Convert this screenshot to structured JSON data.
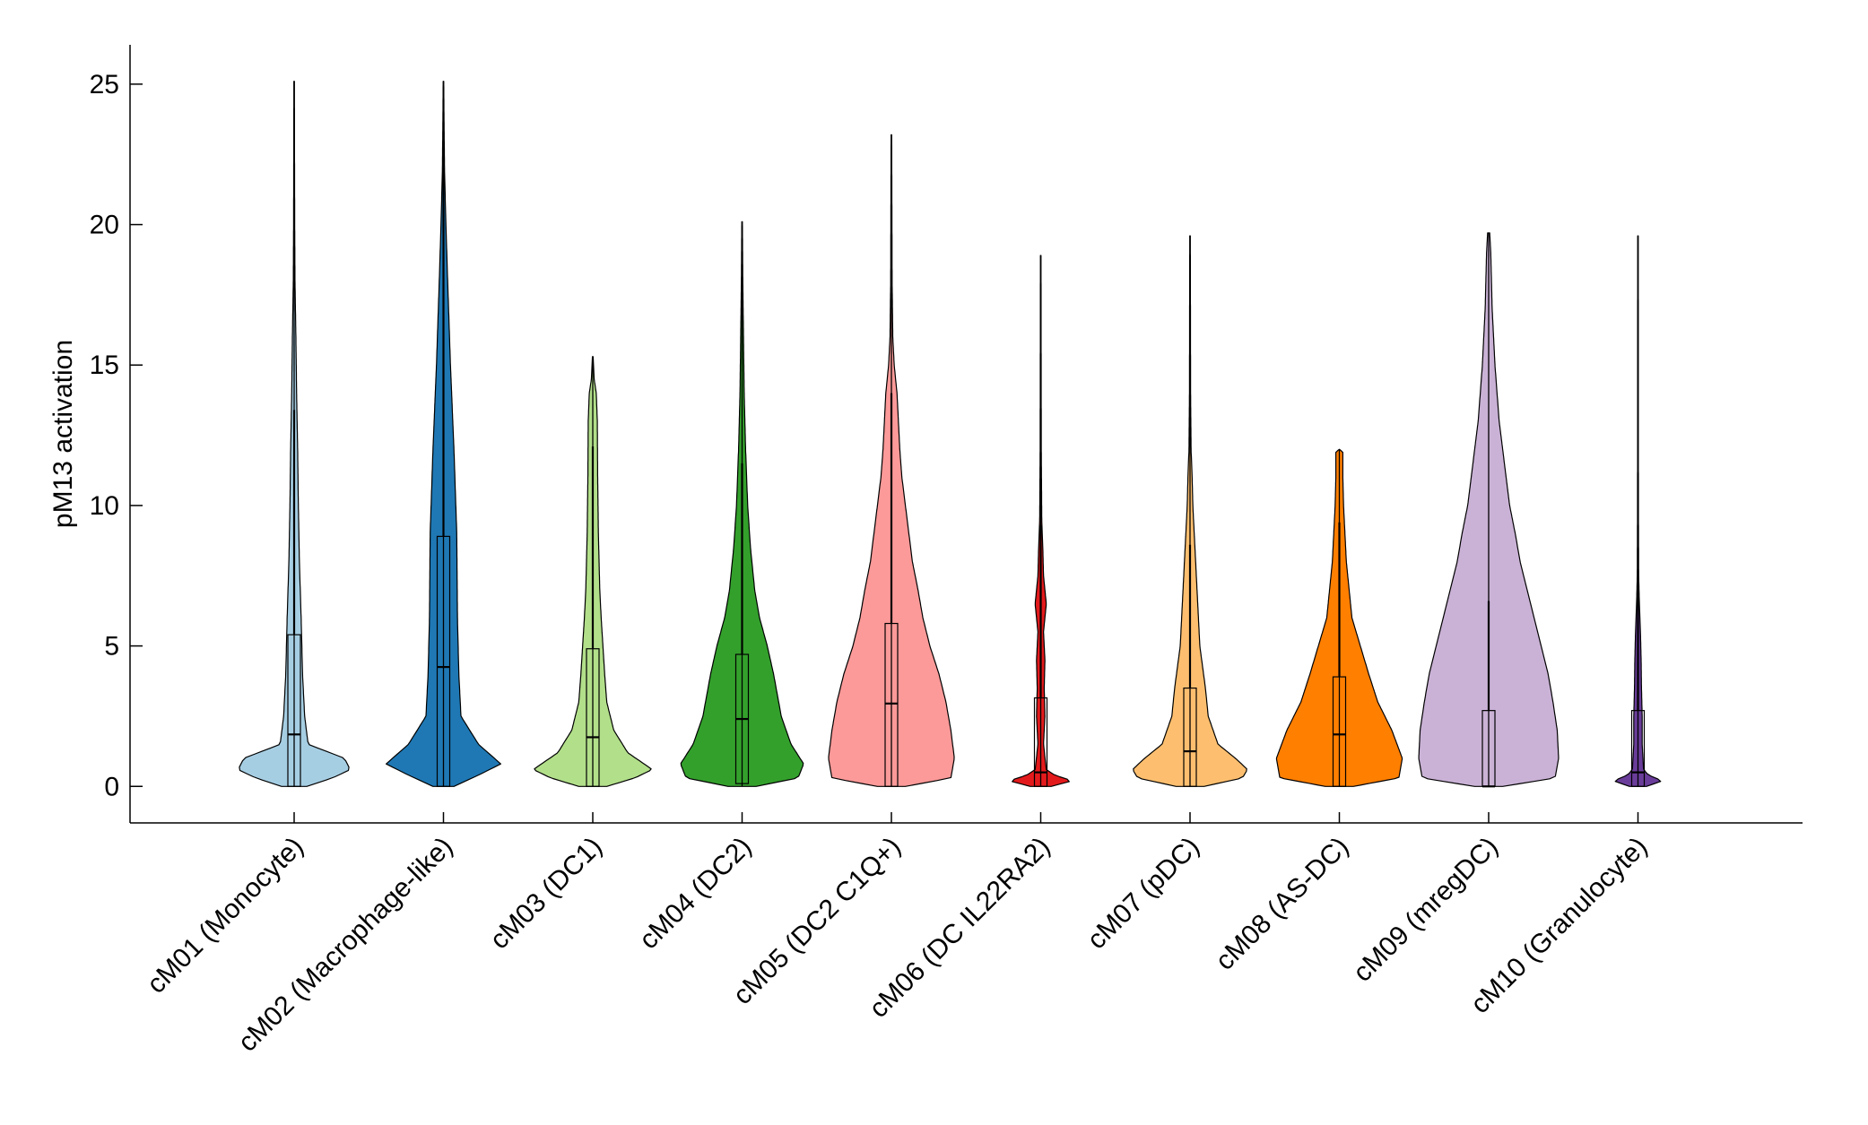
{
  "chart_data": {
    "type": "violin",
    "ylabel": "pM13 activation",
    "ylim": [
      -1.3,
      26.4
    ],
    "yticks": [
      0,
      5,
      10,
      15,
      20,
      25
    ],
    "grid": false,
    "legend": "none",
    "categories": [
      "cM01 (Monocyte)",
      "cM02 (Macrophage-like)",
      "cM03 (DC1)",
      "cM04 (DC2)",
      "cM05 (DC2 C1Q+)",
      "cM06 (DC IL22RA2)",
      "cM07 (pDC)",
      "cM08 (AS-DC)",
      "cM09 (mregDC)",
      "cM10 (Granulocyte)"
    ],
    "colors": [
      "#a6cee3",
      "#1f78b4",
      "#b2df8a",
      "#33a02c",
      "#fb9a99",
      "#e31a1c",
      "#fdbf6f",
      "#ff7f00",
      "#cab2d6",
      "#6a3d9a"
    ],
    "series": [
      {
        "max": 25.1,
        "q1": 0,
        "median": 1.85,
        "q3": 5.4,
        "whisker": 13.4,
        "profile": [
          [
            0,
            0.18
          ],
          [
            0.3,
            0.55
          ],
          [
            0.6,
            0.8
          ],
          [
            1,
            0.72
          ],
          [
            1.5,
            0.2
          ],
          [
            2.5,
            0.15
          ],
          [
            4,
            0.12
          ],
          [
            6,
            0.1
          ],
          [
            8,
            0.075
          ],
          [
            10,
            0.06
          ],
          [
            12,
            0.05
          ],
          [
            14,
            0.035
          ],
          [
            16,
            0.025
          ],
          [
            18,
            0.012
          ],
          [
            20,
            0.008
          ],
          [
            23,
            0.005
          ],
          [
            25.1,
            0.004
          ]
        ]
      },
      {
        "max": 25.1,
        "q1": 0,
        "median": 4.25,
        "q3": 8.9,
        "whisker": 22.0,
        "profile": [
          [
            0,
            0.15
          ],
          [
            0.4,
            0.5
          ],
          [
            0.8,
            0.82
          ],
          [
            1.5,
            0.5
          ],
          [
            2.5,
            0.25
          ],
          [
            4,
            0.22
          ],
          [
            6,
            0.2
          ],
          [
            9,
            0.19
          ],
          [
            12,
            0.15
          ],
          [
            15,
            0.1
          ],
          [
            18,
            0.06
          ],
          [
            20,
            0.035
          ],
          [
            22,
            0.015
          ],
          [
            24,
            0.007
          ],
          [
            25.1,
            0.004
          ]
        ]
      },
      {
        "max": 15.3,
        "q1": 0,
        "median": 1.75,
        "q3": 4.9,
        "whisker": 12.1,
        "profile": [
          [
            0,
            0.2
          ],
          [
            0.3,
            0.6
          ],
          [
            0.6,
            0.85
          ],
          [
            1.2,
            0.5
          ],
          [
            2,
            0.3
          ],
          [
            3,
            0.2
          ],
          [
            4,
            0.17
          ],
          [
            6,
            0.12
          ],
          [
            7,
            0.1
          ],
          [
            9,
            0.08
          ],
          [
            11,
            0.07
          ],
          [
            13,
            0.065
          ],
          [
            14,
            0.05
          ],
          [
            14.5,
            0.02
          ],
          [
            15.3,
            0.005
          ]
        ]
      },
      {
        "max": 20.1,
        "q1": 0.1,
        "median": 2.4,
        "q3": 4.7,
        "whisker": 11.5,
        "profile": [
          [
            0,
            0.2
          ],
          [
            0.3,
            0.8
          ],
          [
            0.8,
            0.88
          ],
          [
            1.5,
            0.7
          ],
          [
            2.5,
            0.56
          ],
          [
            4,
            0.45
          ],
          [
            5,
            0.36
          ],
          [
            6,
            0.25
          ],
          [
            7,
            0.18
          ],
          [
            8.5,
            0.12
          ],
          [
            10,
            0.08
          ],
          [
            12,
            0.05
          ],
          [
            14,
            0.03
          ],
          [
            16,
            0.02
          ],
          [
            18,
            0.01
          ],
          [
            20.1,
            0.004
          ]
        ]
      },
      {
        "max": 23.2,
        "q1": 0,
        "median": 2.95,
        "q3": 5.8,
        "whisker": 14.0,
        "profile": [
          [
            0,
            0.2
          ],
          [
            0.3,
            0.85
          ],
          [
            1,
            0.9
          ],
          [
            2,
            0.85
          ],
          [
            3,
            0.78
          ],
          [
            4,
            0.68
          ],
          [
            5,
            0.55
          ],
          [
            6,
            0.45
          ],
          [
            7,
            0.38
          ],
          [
            8,
            0.3
          ],
          [
            9,
            0.25
          ],
          [
            10,
            0.2
          ],
          [
            11,
            0.15
          ],
          [
            12,
            0.12
          ],
          [
            13,
            0.1
          ],
          [
            14,
            0.08
          ],
          [
            15,
            0.04
          ],
          [
            16,
            0.02
          ],
          [
            18,
            0.01
          ],
          [
            20,
            0.008
          ],
          [
            23.2,
            0.004
          ]
        ]
      },
      {
        "max": 18.9,
        "q1": 0,
        "median": 0.5,
        "q3": 3.15,
        "whisker": 9.3,
        "profile": [
          [
            0,
            0.15
          ],
          [
            0.2,
            0.45
          ],
          [
            0.4,
            0.2
          ],
          [
            0.6,
            0.08
          ],
          [
            1.5,
            0.04
          ],
          [
            2.5,
            0.06
          ],
          [
            3.5,
            0.05
          ],
          [
            4.5,
            0.06
          ],
          [
            5.5,
            0.04
          ],
          [
            6.5,
            0.08
          ],
          [
            7.5,
            0.04
          ],
          [
            8.5,
            0.03
          ],
          [
            9.5,
            0.015
          ],
          [
            12,
            0.008
          ],
          [
            15,
            0.006
          ],
          [
            18.9,
            0.004
          ]
        ]
      },
      {
        "max": 19.6,
        "q1": 0,
        "median": 1.25,
        "q3": 3.5,
        "whisker": 8.6,
        "profile": [
          [
            0,
            0.2
          ],
          [
            0.3,
            0.75
          ],
          [
            0.6,
            0.82
          ],
          [
            1,
            0.65
          ],
          [
            1.5,
            0.4
          ],
          [
            2.5,
            0.26
          ],
          [
            3.5,
            0.22
          ],
          [
            5,
            0.14
          ],
          [
            6,
            0.12
          ],
          [
            7,
            0.1
          ],
          [
            8,
            0.08
          ],
          [
            9,
            0.06
          ],
          [
            10,
            0.04
          ],
          [
            11,
            0.03
          ],
          [
            12,
            0.015
          ],
          [
            14,
            0.008
          ],
          [
            19.6,
            0.004
          ]
        ]
      },
      {
        "max": 12.0,
        "q1": 0,
        "median": 1.85,
        "q3": 3.9,
        "whisker": 9.4,
        "profile": [
          [
            0,
            0.2
          ],
          [
            0.3,
            0.85
          ],
          [
            1,
            0.9
          ],
          [
            2,
            0.75
          ],
          [
            3,
            0.55
          ],
          [
            4,
            0.42
          ],
          [
            5,
            0.3
          ],
          [
            6,
            0.18
          ],
          [
            7,
            0.14
          ],
          [
            8,
            0.1
          ],
          [
            9,
            0.08
          ],
          [
            10,
            0.06
          ],
          [
            11,
            0.05
          ],
          [
            11.9,
            0.05
          ],
          [
            12,
            0.0
          ]
        ]
      },
      {
        "max": 19.7,
        "q1": 0,
        "median": 0,
        "q3": 2.7,
        "whisker": 6.6,
        "profile": [
          [
            0,
            0.2
          ],
          [
            0.3,
            0.95
          ],
          [
            1,
            1.0
          ],
          [
            2,
            0.98
          ],
          [
            3,
            0.92
          ],
          [
            4,
            0.85
          ],
          [
            5,
            0.75
          ],
          [
            6,
            0.65
          ],
          [
            7,
            0.55
          ],
          [
            8,
            0.45
          ],
          [
            9,
            0.38
          ],
          [
            10,
            0.3
          ],
          [
            11,
            0.25
          ],
          [
            12,
            0.2
          ],
          [
            13,
            0.15
          ],
          [
            14,
            0.12
          ],
          [
            15,
            0.09
          ],
          [
            16,
            0.07
          ],
          [
            17,
            0.05
          ],
          [
            18,
            0.04
          ],
          [
            19,
            0.03
          ],
          [
            19.7,
            0.015
          ]
        ]
      },
      {
        "max": 19.6,
        "q1": 0,
        "median": 0.5,
        "q3": 2.7,
        "whisker": 7.5,
        "profile": [
          [
            0,
            0.12
          ],
          [
            0.2,
            0.35
          ],
          [
            0.4,
            0.15
          ],
          [
            0.6,
            0.08
          ],
          [
            1.5,
            0.06
          ],
          [
            2.5,
            0.06
          ],
          [
            3.5,
            0.05
          ],
          [
            4.5,
            0.045
          ],
          [
            5.5,
            0.035
          ],
          [
            6.5,
            0.02
          ],
          [
            7.5,
            0.01
          ],
          [
            10,
            0.006
          ],
          [
            15,
            0.005
          ],
          [
            19.6,
            0.004
          ]
        ]
      }
    ]
  }
}
